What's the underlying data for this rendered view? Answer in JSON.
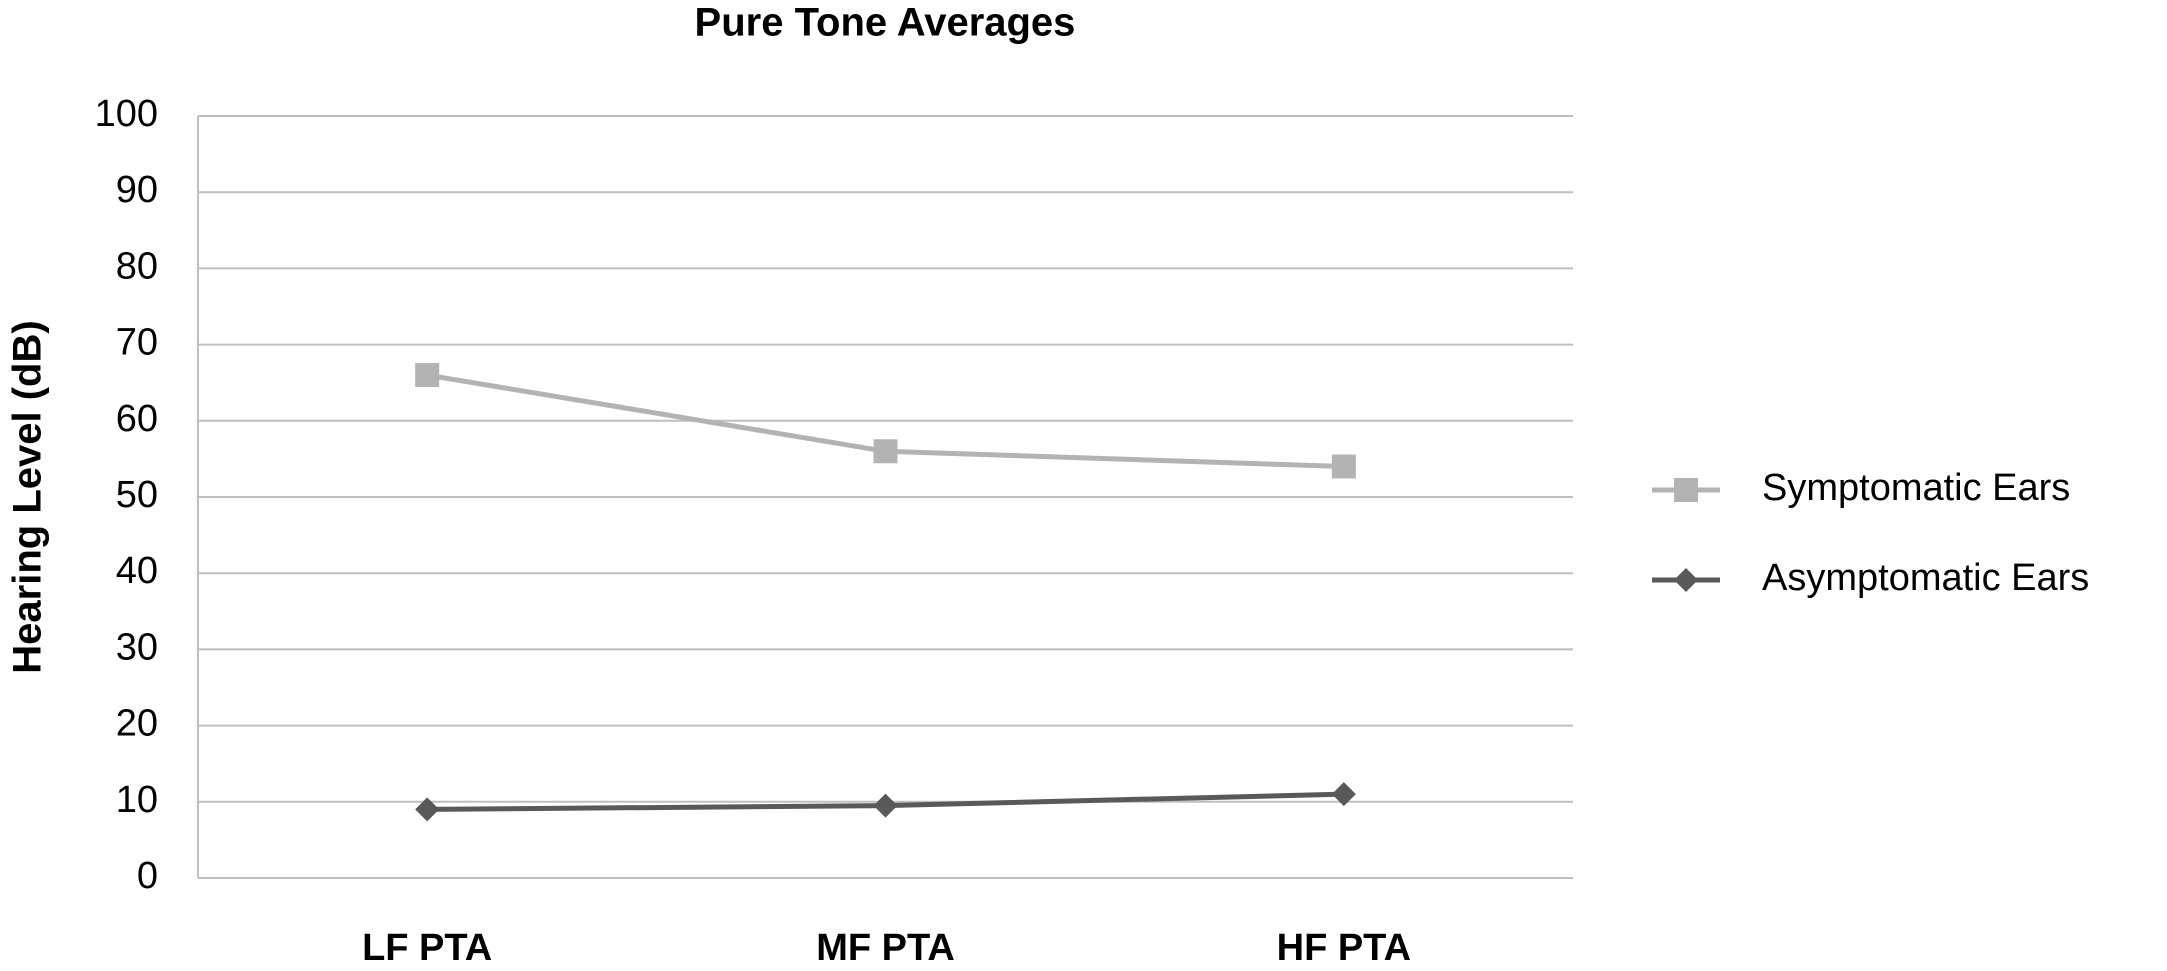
{
  "chart_data": {
    "type": "line",
    "title": "Pure Tone Averages",
    "y_label": "Hearing Level (dB)",
    "categories": [
      "LF PTA",
      "MF PTA",
      "HF PTA"
    ],
    "series": [
      {
        "name": "Symptomatic Ears",
        "color": "#b3b3b3",
        "marker": "square",
        "values": [
          66,
          56,
          54
        ]
      },
      {
        "name": "Asymptomatic Ears",
        "color": "#595959",
        "marker": "diamond",
        "values": [
          9,
          9.5,
          11
        ]
      }
    ],
    "ylim": [
      0,
      100
    ],
    "yticks": [
      0,
      10,
      20,
      30,
      40,
      50,
      60,
      70,
      80,
      90,
      100
    ],
    "grid": true,
    "legend": "right"
  }
}
